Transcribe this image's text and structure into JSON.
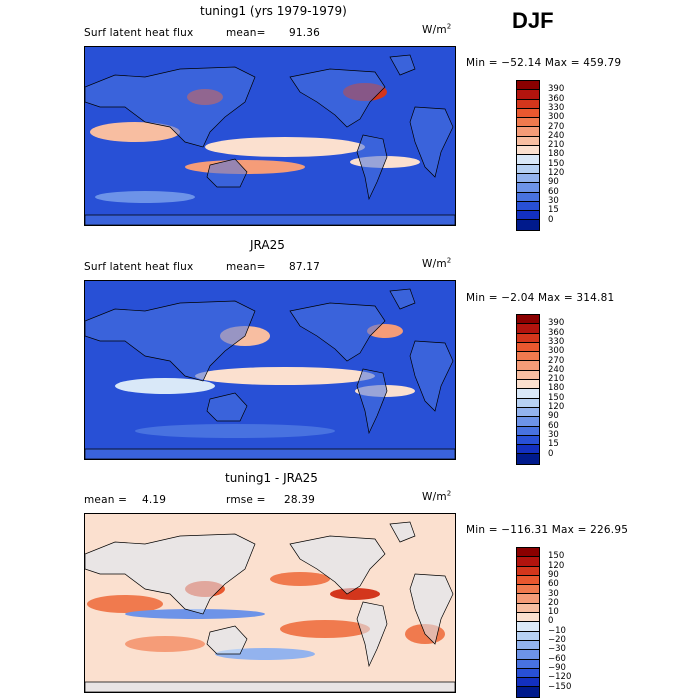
{
  "season_label": "DJF",
  "panels": [
    {
      "title": "tuning1 (yrs 1979-1979)",
      "variable": "Surf latent heat flux",
      "stat_label": "mean=",
      "stat_value": "91.36",
      "units_base": "W/m",
      "units_exp": "2",
      "minmax": "Min = −52.14 Max = 459.79"
    },
    {
      "title": "JRA25",
      "variable": "Surf latent heat flux",
      "stat_label": "mean=",
      "stat_value": "87.17",
      "units_base": "W/m",
      "units_exp": "2",
      "minmax": "Min = −2.04 Max = 314.81"
    },
    {
      "title": "tuning1 - JRA25",
      "variable": "",
      "stat_label": "mean =",
      "stat_value": "4.19",
      "stat2_label": "rmse =",
      "stat2_value": "28.39",
      "units_base": "W/m",
      "units_exp": "2",
      "minmax": "Min = −116.31 Max = 226.95"
    }
  ],
  "chart_data": [
    {
      "type": "heatmap",
      "title": "tuning1 (yrs 1979-1979)",
      "variable": "Surf latent heat flux",
      "units": "W/m2",
      "mean": 91.36,
      "min": -52.14,
      "max": 459.79,
      "colorbar_levels": [
        "390",
        "360",
        "330",
        "300",
        "270",
        "240",
        "210",
        "180",
        "150",
        "120",
        "90",
        "60",
        "30",
        "15",
        "0"
      ],
      "colorbar_colors": [
        "#8b0000",
        "#b2140e",
        "#d3361c",
        "#e9582f",
        "#f07a4e",
        "#f59c78",
        "#f8bea1",
        "#fbe0cf",
        "#d9e8f8",
        "#b7d1f3",
        "#93b3ee",
        "#6d93e8",
        "#4872e0",
        "#2850d6",
        "#1330c0",
        "#001a8c"
      ]
    },
    {
      "type": "heatmap",
      "title": "JRA25",
      "variable": "Surf latent heat flux",
      "units": "W/m2",
      "mean": 87.17,
      "min": -2.04,
      "max": 314.81,
      "colorbar_levels": [
        "390",
        "360",
        "330",
        "300",
        "270",
        "240",
        "210",
        "180",
        "150",
        "120",
        "90",
        "60",
        "30",
        "15",
        "0"
      ],
      "colorbar_colors": [
        "#8b0000",
        "#b2140e",
        "#d3361c",
        "#e9582f",
        "#f07a4e",
        "#f59c78",
        "#f8bea1",
        "#fbe0cf",
        "#d9e8f8",
        "#b7d1f3",
        "#93b3ee",
        "#6d93e8",
        "#4872e0",
        "#2850d6",
        "#1330c0",
        "#001a8c"
      ]
    },
    {
      "type": "heatmap",
      "title": "tuning1 - JRA25",
      "units": "W/m2",
      "mean": 4.19,
      "rmse": 28.39,
      "min": -116.31,
      "max": 226.95,
      "colorbar_levels": [
        "150",
        "120",
        "90",
        "60",
        "30",
        "20",
        "10",
        "0",
        "−10",
        "−20",
        "−30",
        "−60",
        "−90",
        "−120",
        "−150"
      ],
      "colorbar_colors": [
        "#8b0000",
        "#b2140e",
        "#d3361c",
        "#e9582f",
        "#f07a4e",
        "#f59c78",
        "#f8bea1",
        "#fbe0cf",
        "#dbe9f8",
        "#b7d1f3",
        "#93b3ee",
        "#6d93e8",
        "#4872e0",
        "#2850d6",
        "#1330c0",
        "#001a8c"
      ]
    }
  ]
}
